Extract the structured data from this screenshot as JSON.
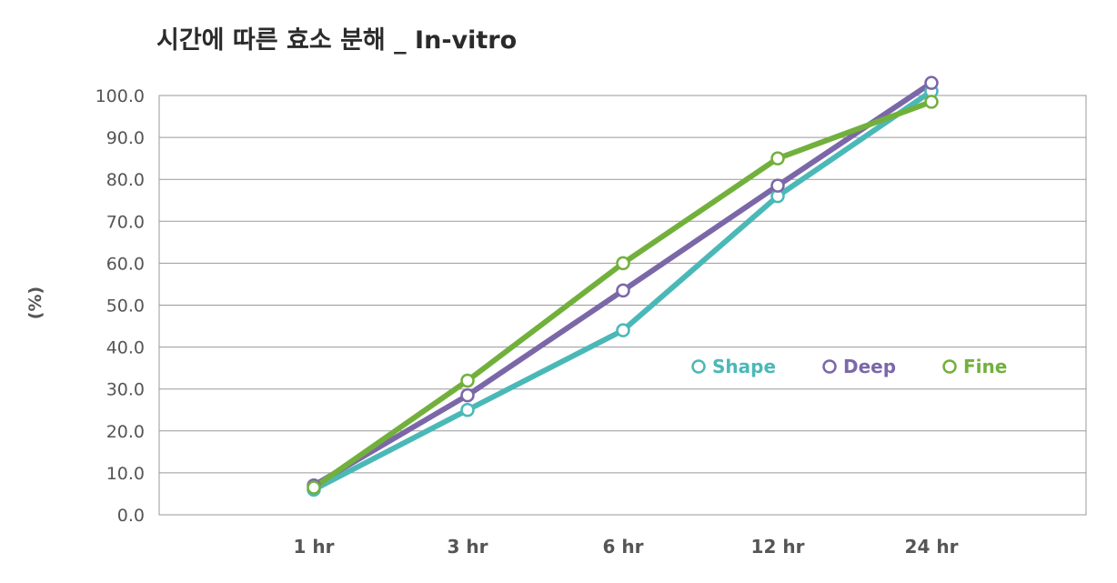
{
  "chart_data": {
    "type": "line",
    "title": "시간에 따른 효소 분해 _ In-vitro",
    "xlabel": "",
    "ylabel": "(%)",
    "categories": [
      "1 hr",
      "3 hr",
      "6 hr",
      "12 hr",
      "24 hr"
    ],
    "ylim": [
      0,
      100
    ],
    "yticks": [
      "0.0",
      "10.0",
      "20.0",
      "30.0",
      "40.0",
      "50.0",
      "60.0",
      "70.0",
      "80.0",
      "90.0",
      "100.0"
    ],
    "grid": true,
    "legend_position": "right-middle",
    "series": [
      {
        "name": "Shape",
        "color": "#4bb8b8",
        "values": [
          6.0,
          25.0,
          44.0,
          76.0,
          101.0
        ]
      },
      {
        "name": "Deep",
        "color": "#7b67a8",
        "values": [
          7.0,
          28.5,
          53.5,
          78.5,
          103.0
        ]
      },
      {
        "name": "Fine",
        "color": "#72b03c",
        "values": [
          6.5,
          32.0,
          60.0,
          85.0,
          98.5
        ]
      }
    ]
  }
}
